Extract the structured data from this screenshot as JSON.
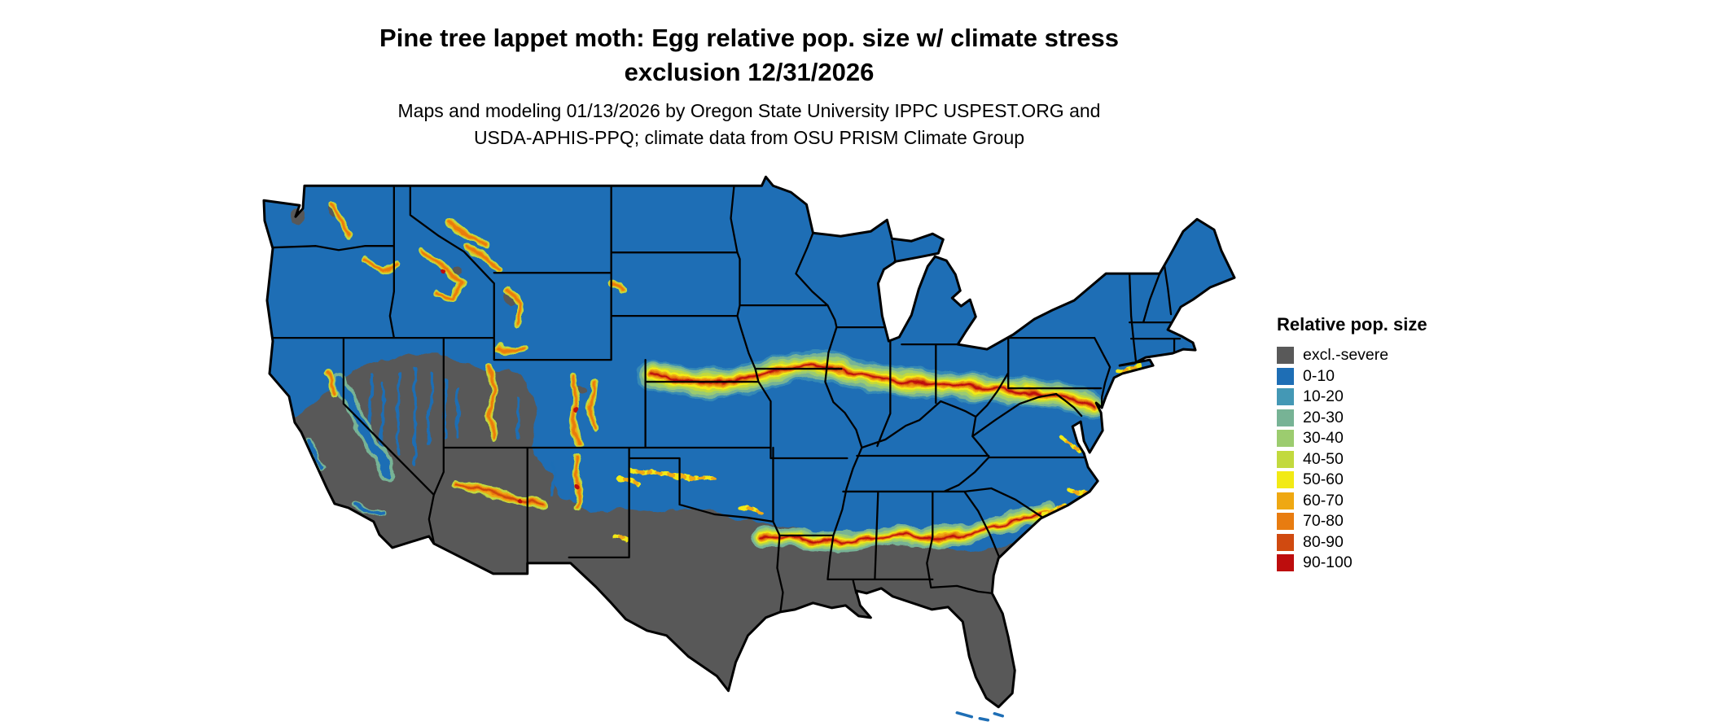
{
  "header": {
    "title_line1": "Pine tree lappet moth: Egg relative pop. size w/ climate stress",
    "title_line2": "exclusion 12/31/2026",
    "subtitle_line1": "Maps and modeling 01/13/2026 by Oregon State University IPPC USPEST.ORG and",
    "subtitle_line2": "USDA-APHIS-PPQ; climate data from OSU PRISM Climate Group"
  },
  "legend": {
    "title": "Relative pop. size",
    "items": [
      {
        "label": "excl.-severe",
        "color": "#595959"
      },
      {
        "label": "0-10",
        "color": "#1e6eb5"
      },
      {
        "label": "10-20",
        "color": "#4498b5"
      },
      {
        "label": "20-30",
        "color": "#77b395"
      },
      {
        "label": "30-40",
        "color": "#9ccc6f"
      },
      {
        "label": "40-50",
        "color": "#c2d93e"
      },
      {
        "label": "50-60",
        "color": "#f2ea15"
      },
      {
        "label": "60-70",
        "color": "#efa812"
      },
      {
        "label": "70-80",
        "color": "#e87c10"
      },
      {
        "label": "80-90",
        "color": "#d04a10"
      },
      {
        "label": "90-100",
        "color": "#bd0d0d"
      }
    ]
  },
  "map": {
    "border_color": "#000000",
    "background_color": "#ffffff"
  }
}
